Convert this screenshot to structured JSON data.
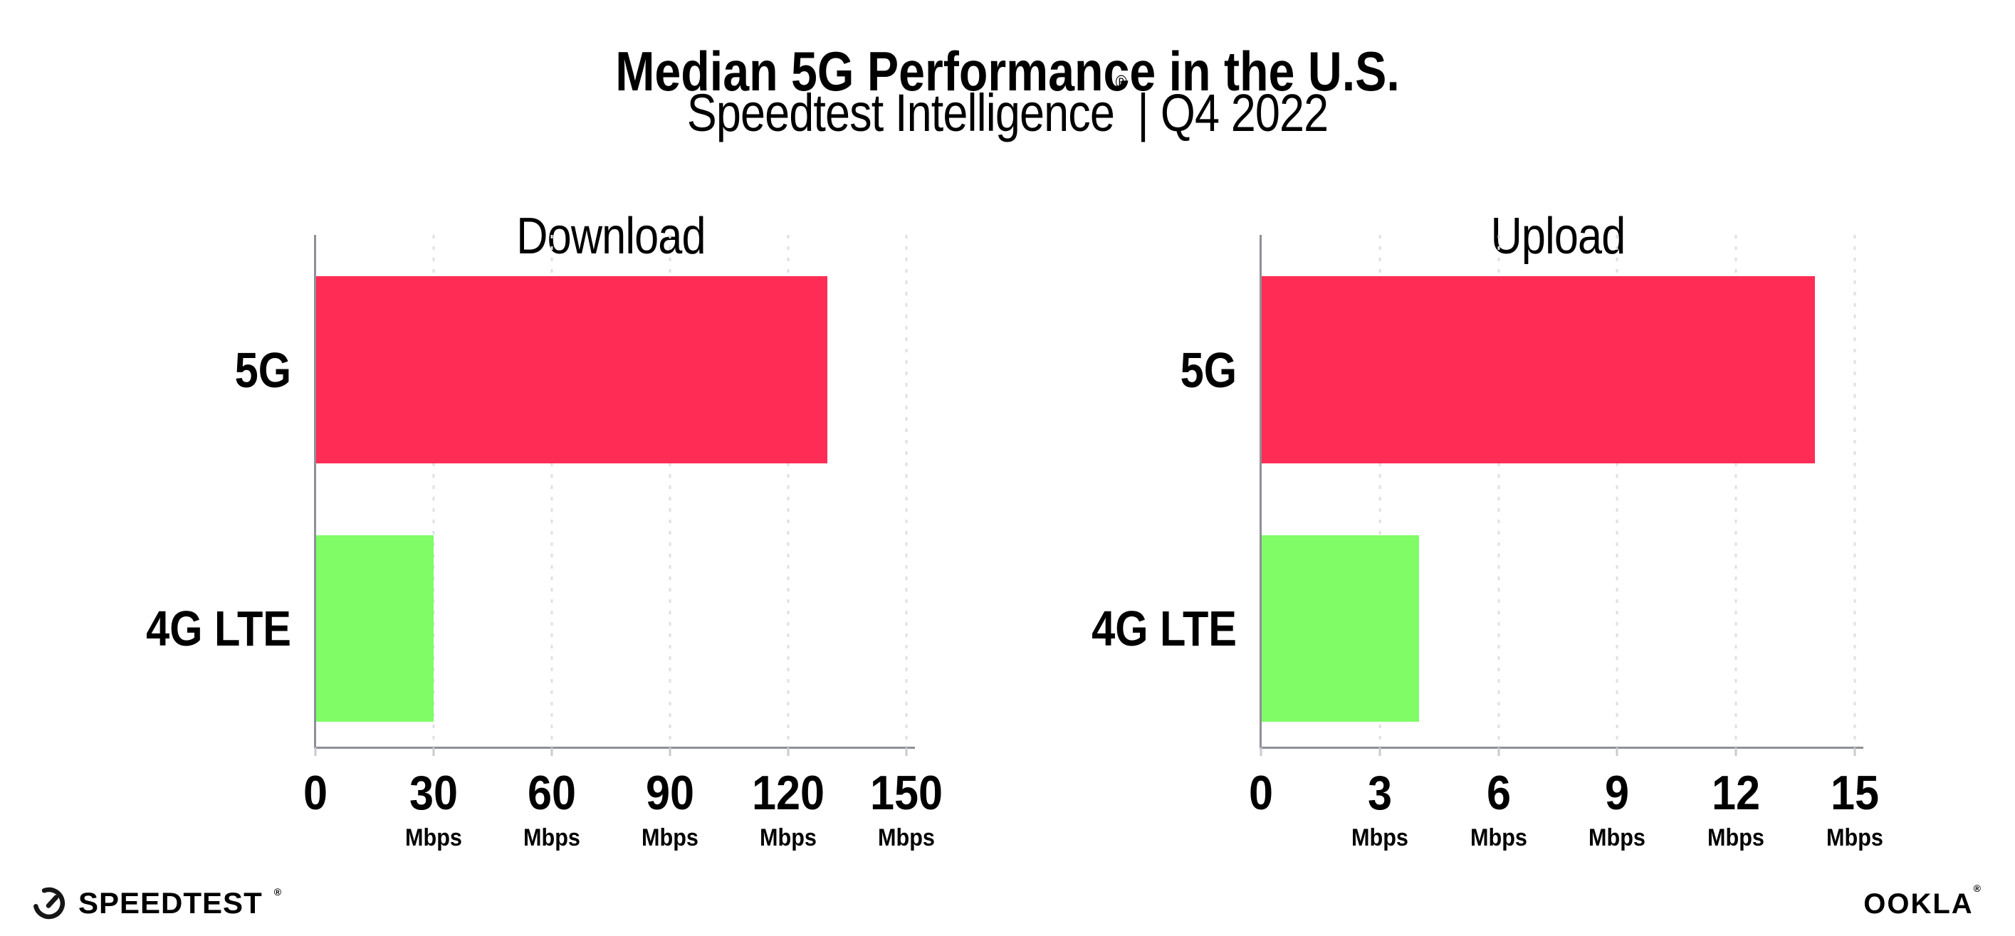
{
  "header": {
    "title": "Median 5G Performance in the U.S.",
    "subtitle_brand": "Speedtest Intelligence",
    "subtitle_reg": "®",
    "subtitle_divider": "|",
    "subtitle_period": "Q4 2022"
  },
  "chart_data": [
    {
      "type": "bar",
      "orientation": "horizontal",
      "title": "Download",
      "categories": [
        "5G",
        "4G LTE"
      ],
      "values": [
        130,
        30
      ],
      "unit": "Mbps",
      "xlim": [
        0,
        150
      ],
      "xticks": [
        0,
        30,
        60,
        90,
        120,
        150
      ],
      "bar_colors": [
        "#FF2D55",
        "#7FFC66"
      ],
      "grid": "dotted-vertical",
      "legend": "none"
    },
    {
      "type": "bar",
      "orientation": "horizontal",
      "title": "Upload",
      "categories": [
        "5G",
        "4G LTE"
      ],
      "values": [
        14,
        4
      ],
      "unit": "Mbps",
      "xlim": [
        0,
        15
      ],
      "xticks": [
        0,
        3,
        6,
        9,
        12,
        15
      ],
      "bar_colors": [
        "#FF2D55",
        "#7FFC66"
      ],
      "grid": "dotted-vertical",
      "legend": "none"
    }
  ],
  "colors": {
    "bar_5g": "#FF2D55",
    "bar_4g_lte": "#7FFC66",
    "axis_spine": "#8f8f98",
    "gridline": "#dfdfe9",
    "text": "#000000",
    "background": "#ffffff"
  },
  "footer": {
    "speedtest_wordmark": "SPEEDTEST",
    "speedtest_reg": "®",
    "speedtest_icon": "speedtest-gauge-icon",
    "ookla_wordmark": "OOKLA",
    "ookla_reg": "®"
  }
}
